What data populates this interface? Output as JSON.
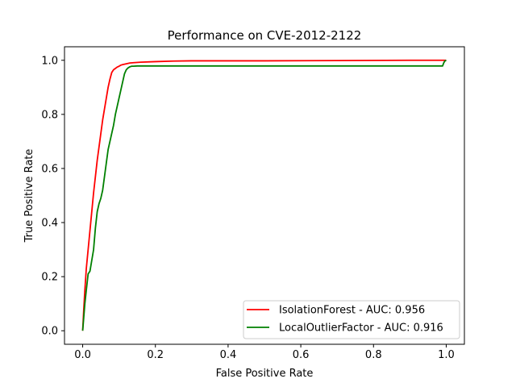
{
  "chart_data": {
    "type": "line",
    "title": "Performance on CVE-2012-2122",
    "xlabel": "False Positive Rate",
    "ylabel": "True Positive Rate",
    "xlim": [
      -0.05,
      1.05
    ],
    "ylim": [
      -0.05,
      1.05
    ],
    "xticks": [
      0.0,
      0.2,
      0.4,
      0.6,
      0.8,
      1.0
    ],
    "yticks": [
      0.0,
      0.2,
      0.4,
      0.6,
      0.8,
      1.0
    ],
    "xtick_labels": [
      "0.0",
      "0.2",
      "0.4",
      "0.6",
      "0.8",
      "1.0"
    ],
    "ytick_labels": [
      "0.0",
      "0.2",
      "0.4",
      "0.6",
      "0.8",
      "1.0"
    ],
    "grid": false,
    "legend_position": "bottom-right",
    "series": [
      {
        "name": "IsolationForest - AUC: 0.956",
        "color": "#ff0000",
        "x": [
          0.0,
          0.003,
          0.006,
          0.01,
          0.015,
          0.02,
          0.025,
          0.03,
          0.035,
          0.04,
          0.045,
          0.05,
          0.055,
          0.06,
          0.065,
          0.07,
          0.075,
          0.08,
          0.085,
          0.09,
          0.095,
          0.1,
          0.105,
          0.11,
          0.12,
          0.13,
          0.14,
          0.16,
          0.2,
          0.25,
          0.3,
          0.5,
          0.7,
          0.9,
          1.0
        ],
        "y": [
          0.0,
          0.08,
          0.15,
          0.23,
          0.3,
          0.37,
          0.44,
          0.51,
          0.57,
          0.63,
          0.68,
          0.73,
          0.78,
          0.82,
          0.86,
          0.9,
          0.93,
          0.955,
          0.965,
          0.97,
          0.975,
          0.978,
          0.982,
          0.984,
          0.987,
          0.99,
          0.991,
          0.993,
          0.995,
          0.997,
          0.998,
          0.998,
          0.999,
          1.0,
          1.0
        ]
      },
      {
        "name": "LocalOutlierFactor - AUC: 0.916",
        "color": "#008000",
        "x": [
          0.0,
          0.003,
          0.006,
          0.01,
          0.015,
          0.02,
          0.025,
          0.03,
          0.035,
          0.04,
          0.045,
          0.05,
          0.055,
          0.06,
          0.065,
          0.07,
          0.075,
          0.08,
          0.085,
          0.09,
          0.095,
          0.1,
          0.105,
          0.11,
          0.115,
          0.12,
          0.125,
          0.13,
          0.135,
          0.14,
          0.15,
          0.2,
          0.5,
          0.8,
          0.99,
          0.993,
          0.996,
          1.0
        ],
        "y": [
          0.0,
          0.05,
          0.1,
          0.15,
          0.21,
          0.22,
          0.26,
          0.3,
          0.38,
          0.44,
          0.47,
          0.49,
          0.52,
          0.57,
          0.62,
          0.67,
          0.7,
          0.73,
          0.76,
          0.8,
          0.83,
          0.86,
          0.89,
          0.92,
          0.95,
          0.965,
          0.972,
          0.976,
          0.978,
          0.978,
          0.979,
          0.979,
          0.979,
          0.979,
          0.979,
          0.99,
          0.997,
          1.0
        ]
      }
    ]
  }
}
